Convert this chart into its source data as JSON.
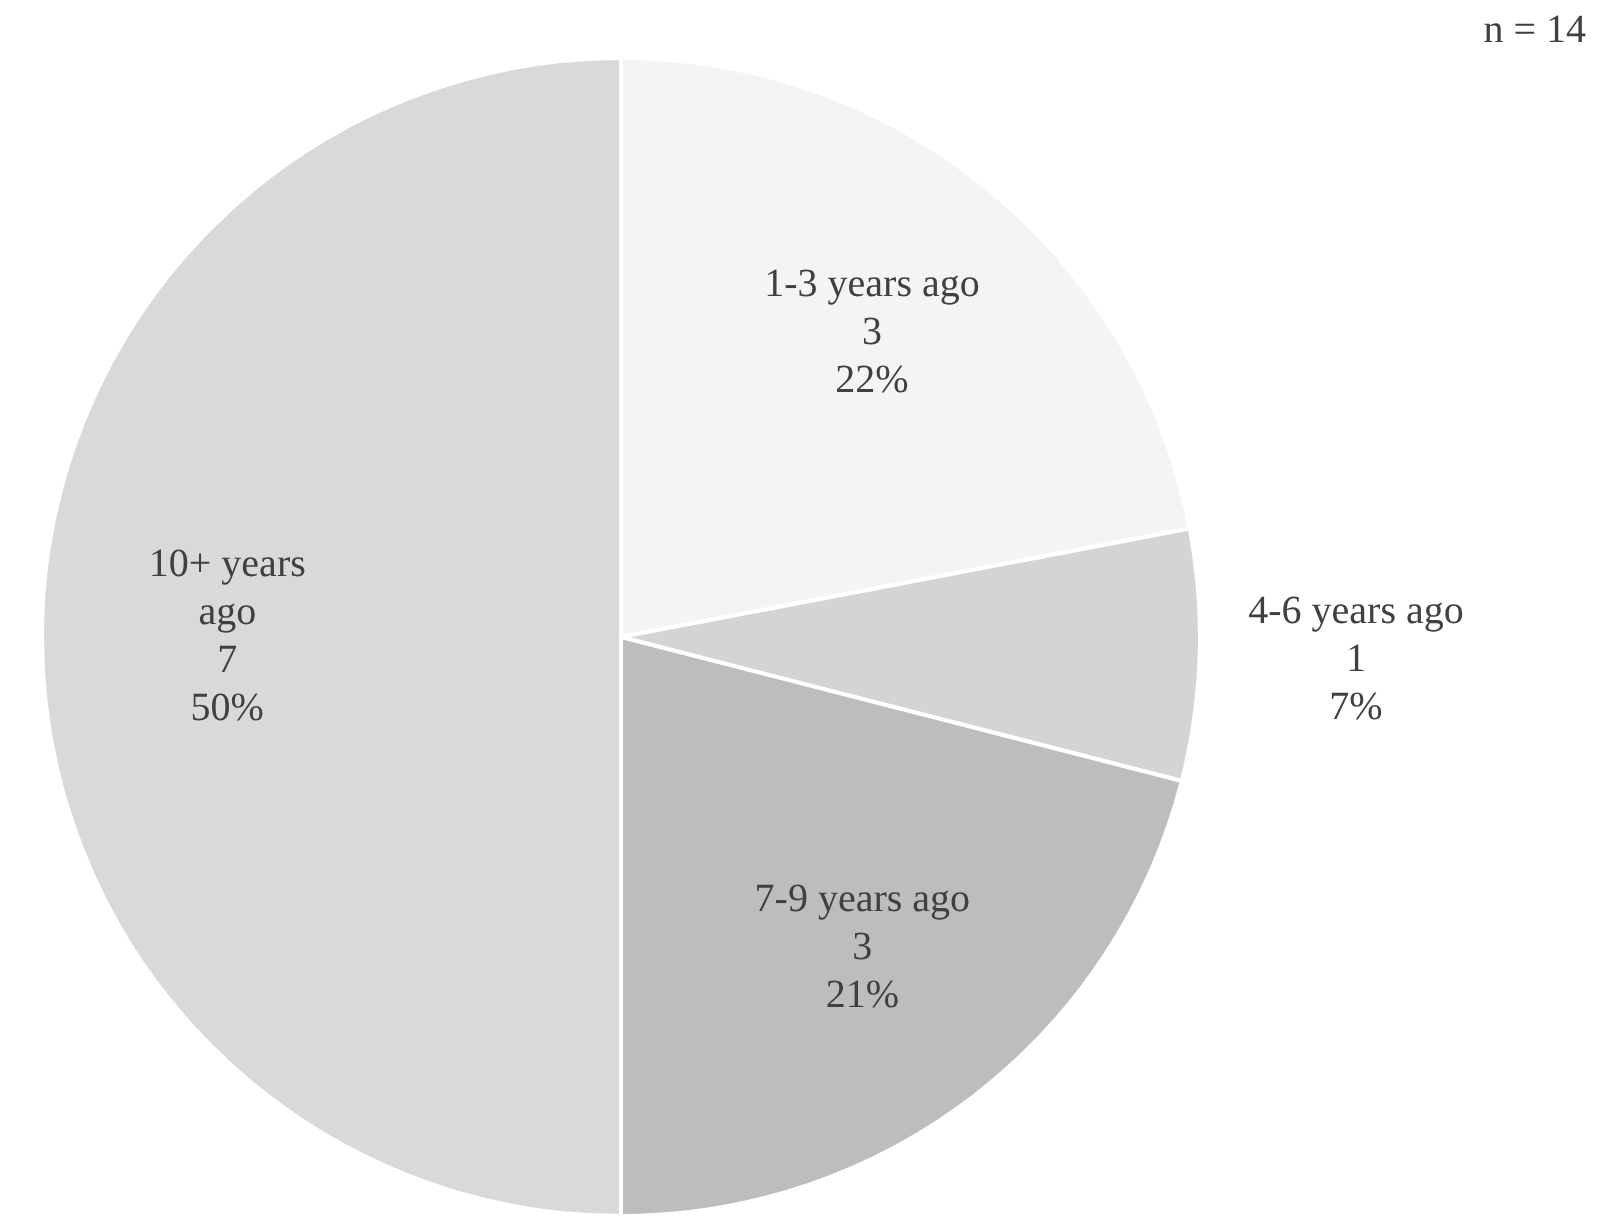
{
  "chart_data": {
    "type": "pie",
    "categories": [
      "1-3 years ago",
      "4-6 years ago",
      "7-9 years ago",
      "10+ years ago"
    ],
    "values": [
      22,
      7,
      21,
      50
    ],
    "value_labels": [
      "3\n22%",
      "1\n7%",
      "3\n21%",
      "7\n50%"
    ],
    "colors": [
      "#f4f4f4",
      "#d4d4d4",
      "#bdbdbd",
      "#d9d9d9"
    ],
    "annotations": [
      "n = 14"
    ],
    "legend": false
  }
}
